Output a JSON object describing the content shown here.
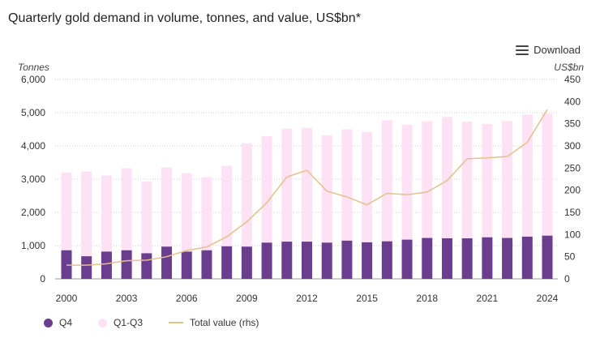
{
  "header": {
    "title": "Quarterly gold demand in volume, tonnes, and value, US$bn*",
    "download_label": "Download",
    "download_icon": "menu-icon"
  },
  "colors": {
    "q4": "#6b3d8e",
    "q1q3": "#fde2f6",
    "line": "#e4c18a",
    "grid": "#cfcfcf",
    "axis": "#999999"
  },
  "legend": {
    "q4": "Q4",
    "q1q3": "Q1-Q3",
    "line": "Total value (rhs)"
  },
  "chart_data": {
    "type": "bar",
    "stacked": true,
    "x": [
      2000,
      2001,
      2002,
      2003,
      2004,
      2005,
      2006,
      2007,
      2008,
      2009,
      2010,
      2011,
      2012,
      2013,
      2014,
      2015,
      2016,
      2017,
      2018,
      2019,
      2020,
      2021,
      2022,
      2023,
      2024
    ],
    "x_tick_labels": [
      "2000",
      "2003",
      "2006",
      "2009",
      "2012",
      "2015",
      "2018",
      "2021",
      "2024"
    ],
    "series": [
      {
        "name": "Q4",
        "axis": "left",
        "kind": "bar",
        "values": [
          860,
          680,
          820,
          860,
          770,
          970,
          820,
          860,
          980,
          970,
          1090,
          1120,
          1120,
          1090,
          1150,
          1100,
          1130,
          1180,
          1230,
          1220,
          1220,
          1250,
          1230,
          1270,
          1300
        ]
      },
      {
        "name": "Q1-Q3",
        "axis": "left",
        "kind": "bar",
        "values": [
          2340,
          2550,
          2290,
          2470,
          2160,
          2380,
          2360,
          2200,
          2420,
          3110,
          3200,
          3400,
          3420,
          3230,
          3350,
          3320,
          3640,
          3460,
          3510,
          3650,
          3510,
          3410,
          3520,
          3670,
          3670
        ]
      },
      {
        "name": "Total value (rhs)",
        "axis": "right",
        "kind": "line",
        "values": [
          31,
          31,
          34,
          41,
          42,
          50,
          64,
          72,
          95,
          129,
          172,
          230,
          245,
          198,
          185,
          167,
          193,
          190,
          196,
          222,
          271,
          273,
          276,
          308,
          382
        ]
      }
    ],
    "left_axis": {
      "label": "Tonnes",
      "min": 0,
      "max": 6000,
      "ticks": [
        "0",
        "1,000",
        "2,000",
        "3,000",
        "4,000",
        "5,000",
        "6,000"
      ]
    },
    "right_axis": {
      "label": "US$bn",
      "min": 0,
      "max": 450,
      "ticks": [
        "0",
        "50",
        "100",
        "150",
        "200",
        "250",
        "300",
        "350",
        "400",
        "450"
      ]
    },
    "grid": true,
    "legend_position": "bottom-left"
  }
}
